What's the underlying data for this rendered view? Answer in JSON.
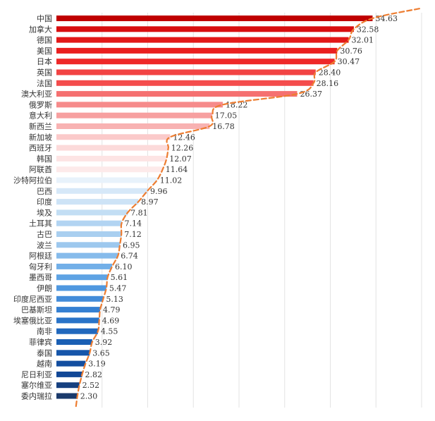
{
  "chart_data": {
    "type": "bar",
    "orientation": "horizontal",
    "categories": [
      "中国",
      "加拿大",
      "德国",
      "美国",
      "日本",
      "英国",
      "法国",
      "澳大利亚",
      "俄罗斯",
      "意大利",
      "新西兰",
      "新加坡",
      "西班牙",
      "韩国",
      "阿联酋",
      "沙特阿拉伯",
      "巴西",
      "印度",
      "埃及",
      "土耳其",
      "古巴",
      "波兰",
      "阿根廷",
      "匈牙利",
      "墨西哥",
      "伊朗",
      "印度尼西亚",
      "巴基斯坦",
      "埃塞俄比亚",
      "南非",
      "菲律宾",
      "泰国",
      "越南",
      "尼日利亚",
      "塞尔维亚",
      "委内瑞拉"
    ],
    "values": [
      34.63,
      32.58,
      32.01,
      30.76,
      30.47,
      28.4,
      28.16,
      26.37,
      18.22,
      17.05,
      16.78,
      12.46,
      12.26,
      12.07,
      11.64,
      11.02,
      9.96,
      8.97,
      7.81,
      7.14,
      7.12,
      6.95,
      6.74,
      6.1,
      5.61,
      5.47,
      5.13,
      4.79,
      4.69,
      4.55,
      3.92,
      3.65,
      3.19,
      2.82,
      2.52,
      2.3
    ],
    "value_labels": [
      "34.63",
      "32.58",
      "32.01",
      "30.76",
      "30.47",
      "28.40",
      "28.16",
      "26.37",
      "18.22",
      "17.05",
      "16.78",
      "12.46",
      "12.26",
      "12.07",
      "11.64",
      "11.02",
      "9.96",
      "8.97",
      "7.81",
      "7.14",
      "7.12",
      "6.95",
      "6.74",
      "6.10",
      "5.61",
      "5.47",
      "5.13",
      "4.79",
      "4.69",
      "4.55",
      "3.92",
      "3.65",
      "3.19",
      "2.82",
      "2.52",
      "2.30"
    ],
    "colors": [
      "#c00000",
      "#d80e10",
      "#e21818",
      "#ea1f1f",
      "#ee2828",
      "#f24343",
      "#f44c4c",
      "#f57070",
      "#f68b8b",
      "#f7a0a0",
      "#f8b2b2",
      "#fbcaca",
      "#fcdada",
      "#fde4e4",
      "#fdeaea",
      "#e8f2fb",
      "#d6e8f8",
      "#cde3f6",
      "#c3def4",
      "#b2d4f2",
      "#a9cff0",
      "#9dc8ee",
      "#86bbeb",
      "#72afe8",
      "#5ea3e4",
      "#4f98e0",
      "#438cd9",
      "#3580d2",
      "#2a74c8",
      "#2168bd",
      "#1a5fb4",
      "#1656aa",
      "#134ea0",
      "#114796",
      "#16407f",
      "#1b3a6b"
    ],
    "xlim": [
      0,
      40
    ],
    "grid": true,
    "trendline": {
      "style": "dashed",
      "color": "#ed7d31"
    }
  }
}
